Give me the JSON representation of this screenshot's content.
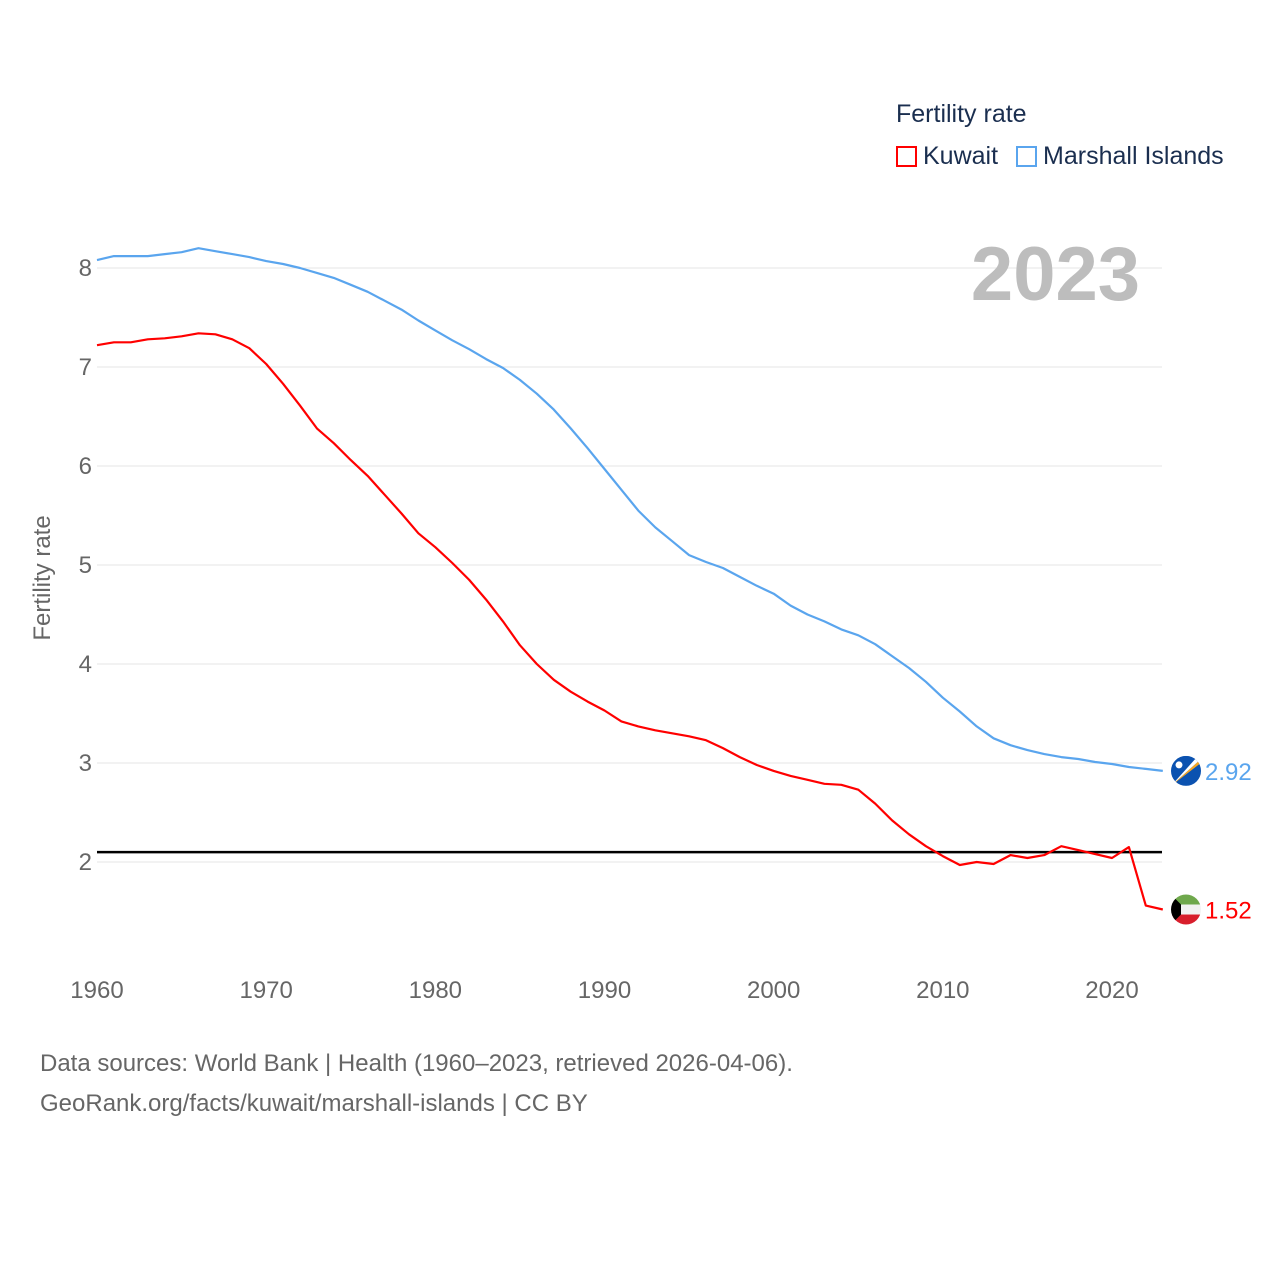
{
  "legend": {
    "title": "Fertility rate",
    "items": [
      {
        "label": "Kuwait",
        "color": "#ff0000"
      },
      {
        "label": "Marshall Islands",
        "color": "#5aa5ee"
      }
    ]
  },
  "year_label": "2023",
  "footer": {
    "line1": "Data sources: World Bank | Health (1960–2023, retrieved 2026-04-06).",
    "line2": "GeoRank.org/facts/kuwait/marshall-islands | CC BY"
  },
  "chart_data": {
    "type": "line",
    "title": "Fertility rate",
    "xlabel": "",
    "ylabel": "Fertility rate",
    "xlim": [
      1960,
      2023
    ],
    "ylim": [
      1.0,
      8.4
    ],
    "xticks": [
      "1960",
      "1970",
      "1980",
      "1990",
      "2000",
      "2010",
      "2020"
    ],
    "yticks": [
      "2",
      "3",
      "4",
      "5",
      "6",
      "7",
      "8"
    ],
    "grid": true,
    "legend_position": "top-right",
    "reference_line": {
      "y": 2.1,
      "color": "#000000"
    },
    "x": [
      1960,
      1961,
      1962,
      1963,
      1964,
      1965,
      1966,
      1967,
      1968,
      1969,
      1970,
      1971,
      1972,
      1973,
      1974,
      1975,
      1976,
      1977,
      1978,
      1979,
      1980,
      1981,
      1982,
      1983,
      1984,
      1985,
      1986,
      1987,
      1988,
      1989,
      1990,
      1991,
      1992,
      1993,
      1994,
      1995,
      1996,
      1997,
      1998,
      1999,
      2000,
      2001,
      2002,
      2003,
      2004,
      2005,
      2006,
      2007,
      2008,
      2009,
      2010,
      2011,
      2012,
      2013,
      2014,
      2015,
      2016,
      2017,
      2018,
      2019,
      2020,
      2021,
      2022,
      2023
    ],
    "series": [
      {
        "name": "Kuwait",
        "color": "#ff0000",
        "end_label": "1.52",
        "values": [
          7.22,
          7.25,
          7.25,
          7.28,
          7.29,
          7.31,
          7.34,
          7.33,
          7.28,
          7.19,
          7.03,
          6.83,
          6.61,
          6.38,
          6.23,
          6.06,
          5.9,
          5.71,
          5.52,
          5.32,
          5.18,
          5.02,
          4.85,
          4.65,
          4.43,
          4.19,
          4.0,
          3.84,
          3.72,
          3.62,
          3.53,
          3.42,
          3.37,
          3.33,
          3.3,
          3.27,
          3.23,
          3.15,
          3.06,
          2.98,
          2.92,
          2.87,
          2.83,
          2.79,
          2.78,
          2.73,
          2.59,
          2.42,
          2.28,
          2.16,
          2.06,
          1.97,
          2.0,
          1.98,
          2.07,
          2.04,
          2.07,
          2.16,
          2.12,
          2.08,
          2.04,
          2.15,
          1.56,
          1.52
        ]
      },
      {
        "name": "Marshall Islands",
        "color": "#5aa5ee",
        "end_label": "2.92",
        "values": [
          8.08,
          8.12,
          8.12,
          8.12,
          8.14,
          8.16,
          8.2,
          8.17,
          8.14,
          8.11,
          8.07,
          8.04,
          8.0,
          7.95,
          7.9,
          7.83,
          7.76,
          7.67,
          7.58,
          7.47,
          7.37,
          7.27,
          7.18,
          7.08,
          6.99,
          6.87,
          6.73,
          6.57,
          6.38,
          6.18,
          5.97,
          5.76,
          5.55,
          5.38,
          5.24,
          5.1,
          5.03,
          4.97,
          4.88,
          4.79,
          4.71,
          4.59,
          4.5,
          4.43,
          4.35,
          4.29,
          4.2,
          4.08,
          3.96,
          3.82,
          3.66,
          3.52,
          3.37,
          3.25,
          3.18,
          3.13,
          3.09,
          3.06,
          3.04,
          3.01,
          2.99,
          2.96,
          2.94,
          2.92
        ]
      }
    ]
  }
}
